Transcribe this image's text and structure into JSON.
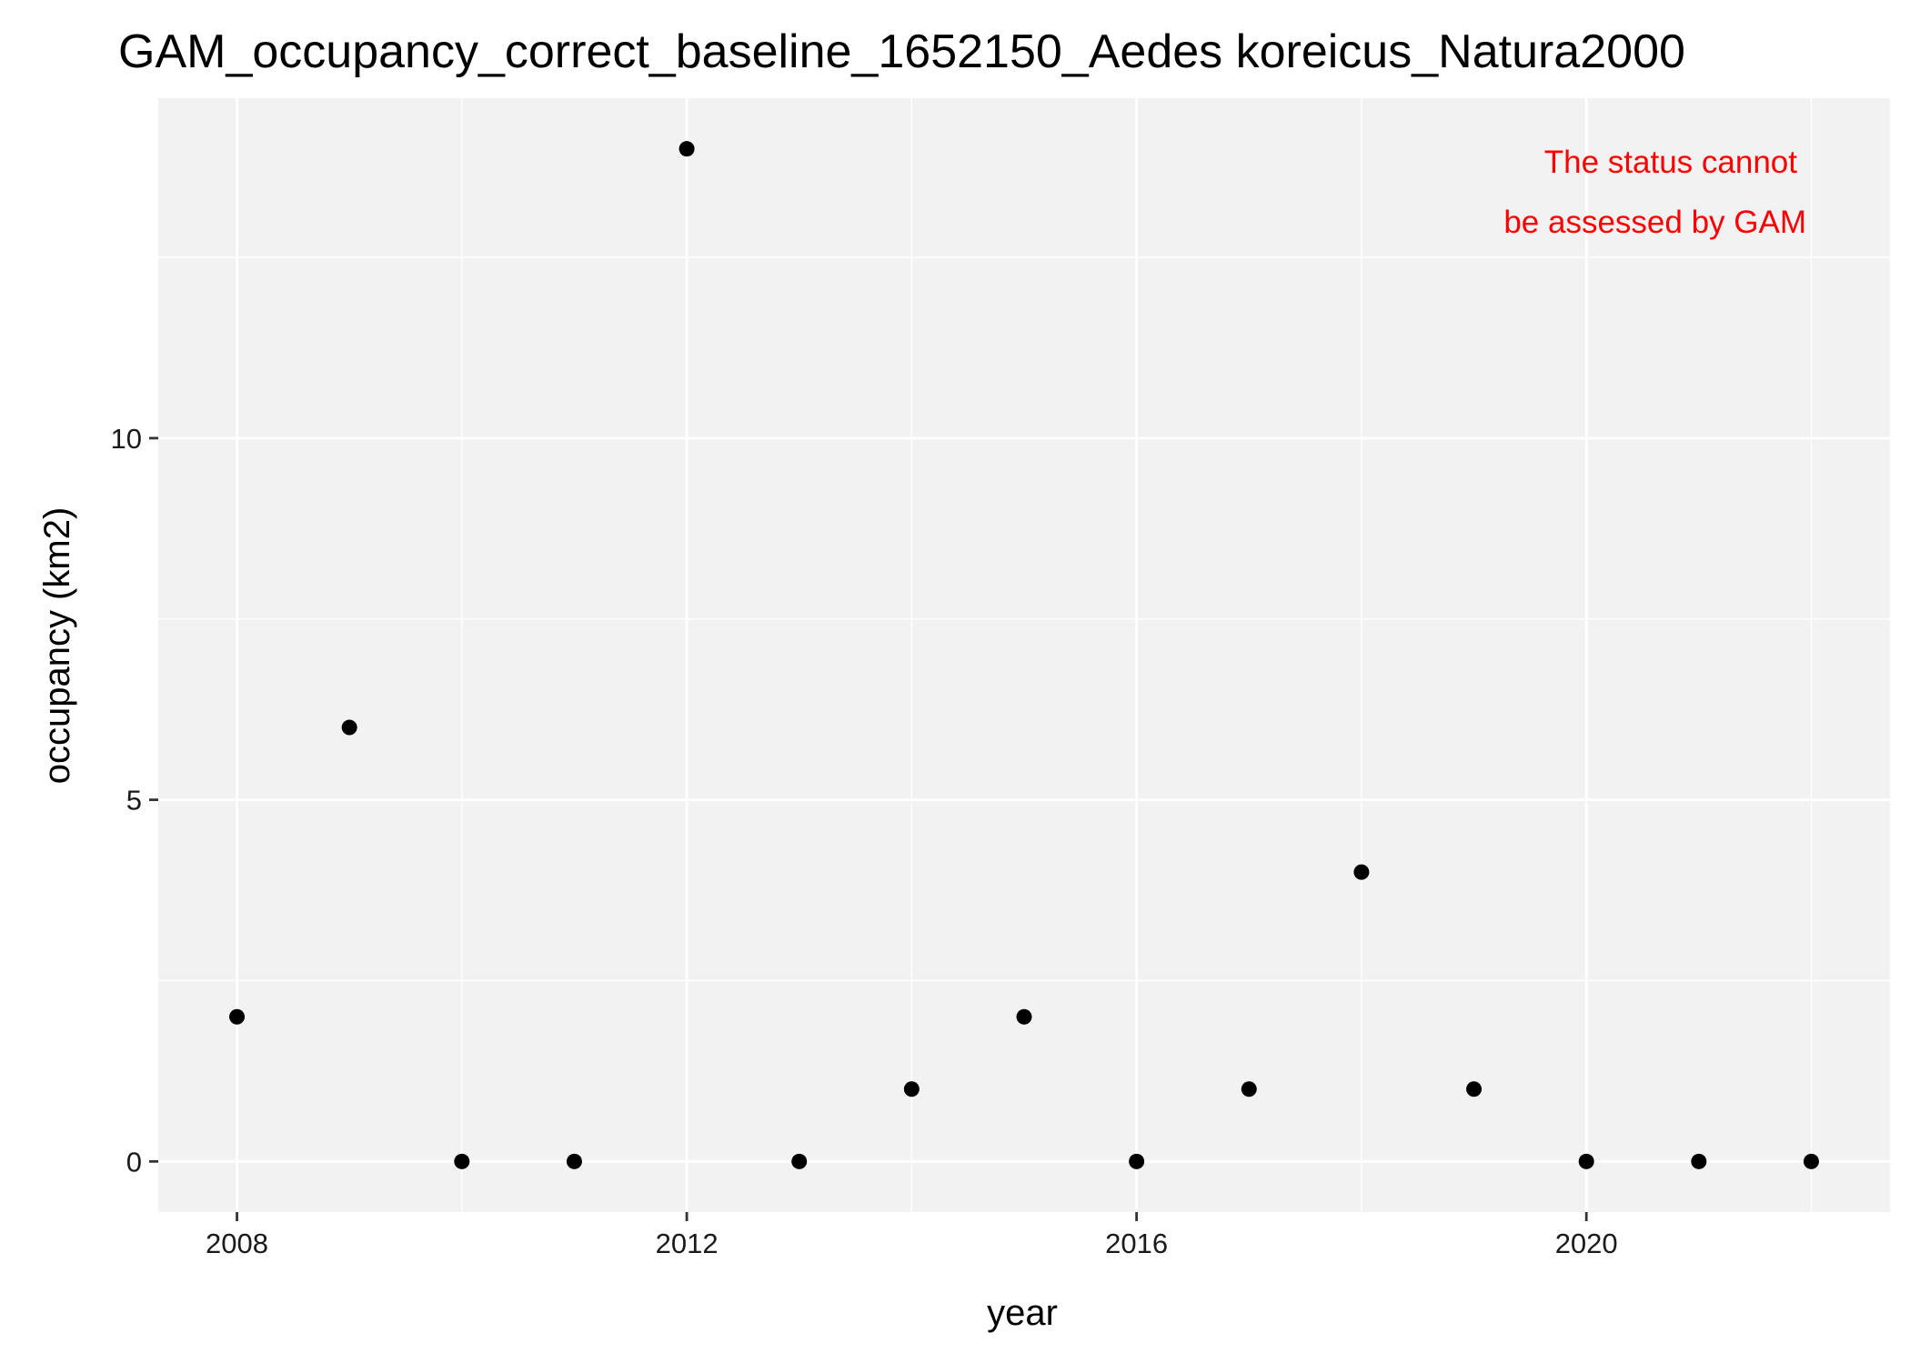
{
  "chart_data": {
    "type": "scatter",
    "title": "GAM_occupancy_correct_baseline_1652150_Aedes koreicus_Natura2000",
    "xlabel": "year",
    "ylabel": "occupancy (km2)",
    "x_ticks": [
      2008,
      2012,
      2016,
      2020
    ],
    "y_ticks": [
      0,
      5,
      10
    ],
    "xlim": [
      2007.3,
      2022.7
    ],
    "ylim": [
      -0.7,
      14.7
    ],
    "grid": true,
    "legend": "none",
    "annotation": [
      "The status cannot",
      "be assessed by GAM"
    ],
    "annotation_color": "#ff0000",
    "point_color": "#000000",
    "panel_background": "#f2f2f2",
    "x": [
      2008,
      2009,
      2010,
      2011,
      2012,
      2013,
      2014,
      2015,
      2016,
      2017,
      2018,
      2019,
      2020,
      2021,
      2022
    ],
    "y": [
      2,
      6,
      0,
      0,
      14,
      0,
      1,
      2,
      0,
      1,
      4,
      1,
      0,
      0,
      0
    ]
  }
}
